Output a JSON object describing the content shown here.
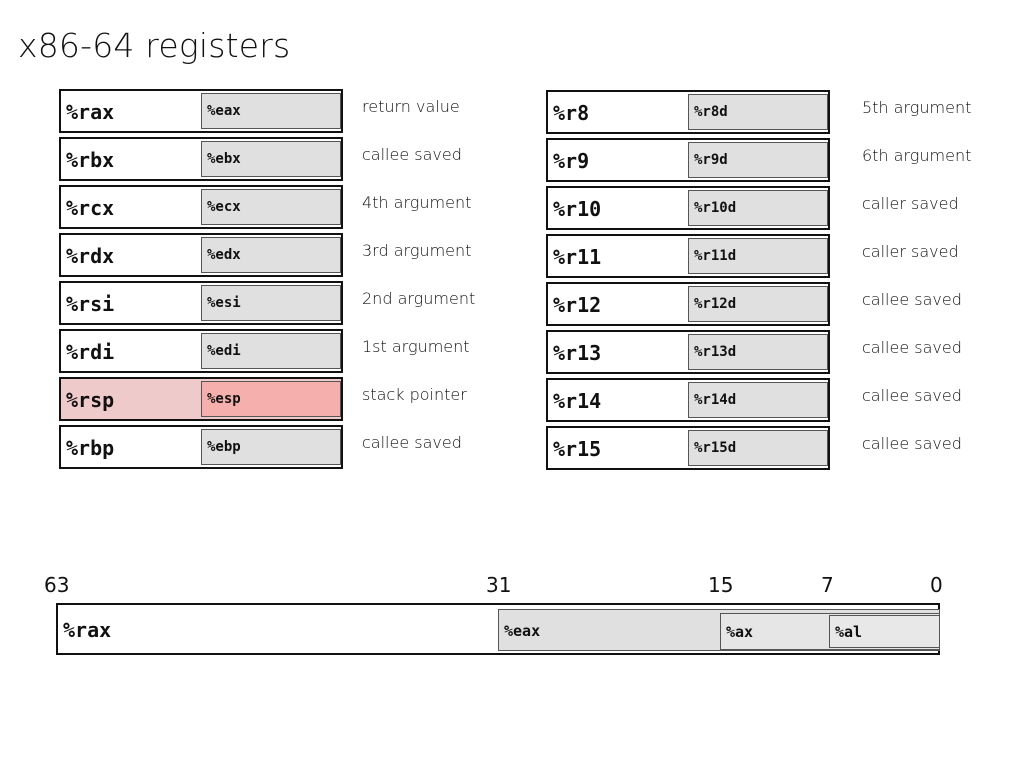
{
  "title": "x86-64 registers",
  "left_column": [
    {
      "r64": "%rax",
      "r32": "%eax",
      "role": "return value"
    },
    {
      "r64": "%rbx",
      "r32": "%ebx",
      "role": "callee saved"
    },
    {
      "r64": "%rcx",
      "r32": "%ecx",
      "role": "4th argument"
    },
    {
      "r64": "%rdx",
      "r32": "%edx",
      "role": "3rd argument"
    },
    {
      "r64": "%rsi",
      "r32": "%esi",
      "role": "2nd argument"
    },
    {
      "r64": "%rdi",
      "r32": "%edi",
      "role": "1st argument"
    },
    {
      "r64": "%rsp",
      "r32": "%esp",
      "role": "stack pointer",
      "highlight": true
    },
    {
      "r64": "%rbp",
      "r32": "%ebp",
      "role": "callee saved"
    }
  ],
  "right_column": [
    {
      "r64": "%r8",
      "r32": "%r8d",
      "role": "5th argument"
    },
    {
      "r64": "%r9",
      "r32": "%r9d",
      "role": "6th argument"
    },
    {
      "r64": "%r10",
      "r32": "%r10d",
      "role": "caller saved"
    },
    {
      "r64": "%r11",
      "r32": "%r11d",
      "role": "caller saved"
    },
    {
      "r64": "%r12",
      "r32": "%r12d",
      "role": "callee saved"
    },
    {
      "r64": "%r13",
      "r32": "%r13d",
      "role": "callee saved"
    },
    {
      "r64": "%r14",
      "r32": "%r14d",
      "role": "callee saved"
    },
    {
      "r64": "%r15",
      "r32": "%r15d",
      "role": "callee saved"
    }
  ],
  "bit_layout": {
    "bits": [
      "63",
      "31",
      "15",
      "7",
      "0"
    ],
    "rax": "%rax",
    "eax": "%eax",
    "ax": "%ax",
    "al": "%al"
  },
  "colors": {
    "sub_register": "#e0e0e0",
    "stack_highlight": "#efcaca",
    "stack_highlight_sub": "#f5b0ae"
  }
}
